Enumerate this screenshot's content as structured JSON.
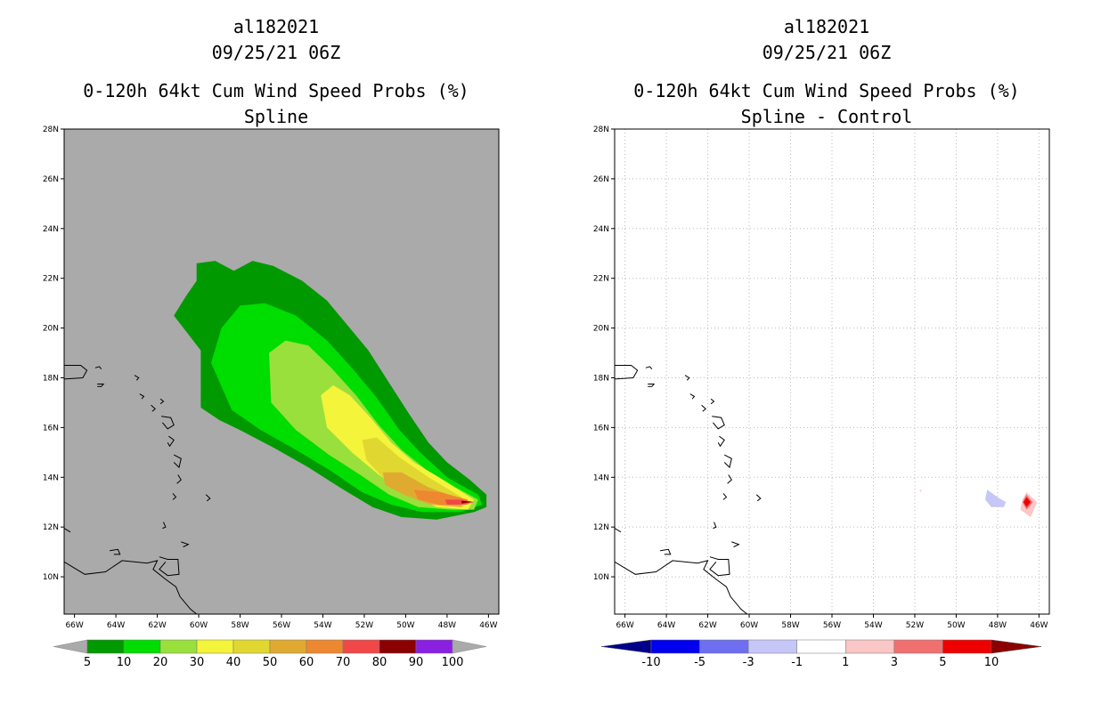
{
  "left_panel": {
    "storm_id": "al182021",
    "datetime": "09/25/21 06Z",
    "product": "0-120h 64kt Cum Wind Speed Probs (%)",
    "subtitle": "Spline"
  },
  "right_panel": {
    "storm_id": "al182021",
    "datetime": "09/25/21 06Z",
    "product": "0-120h 64kt Cum Wind Speed Probs (%)",
    "subtitle": "Spline - Control"
  },
  "chart_data": [
    {
      "type": "heatmap",
      "title": "0-120h 64kt Cum Wind Speed Probs (%) — Spline",
      "xlim": [
        -66.5,
        -45.5
      ],
      "ylim": [
        8.5,
        28
      ],
      "x_ticks": [
        "66W",
        "64W",
        "62W",
        "60W",
        "58W",
        "56W",
        "54W",
        "52W",
        "50W",
        "48W",
        "46W"
      ],
      "y_ticks": [
        "28N",
        "26N",
        "24N",
        "22N",
        "20N",
        "18N",
        "16N",
        "14N",
        "12N",
        "10N"
      ],
      "grid": false,
      "background": "#aaaaaa",
      "colorbar": {
        "levels": [
          "5",
          "10",
          "20",
          "30",
          "40",
          "50",
          "60",
          "70",
          "80",
          "90",
          "100"
        ],
        "colors": [
          "#009900",
          "#00dd00",
          "#99e03c",
          "#f4f43a",
          "#e0d830",
          "#e0aa30",
          "#ee8830",
          "#f04848",
          "#8b0000",
          "#8a20e0"
        ]
      },
      "contour_bands": [
        {
          "level": 5,
          "color": "#009900",
          "points": [
            [
              -61.2,
              20.5
            ],
            [
              -60.6,
              21.3
            ],
            [
              -60.1,
              21.9
            ],
            [
              -60.1,
              22.6
            ],
            [
              -59.2,
              22.7
            ],
            [
              -58.3,
              22.3
            ],
            [
              -57.4,
              22.7
            ],
            [
              -56.4,
              22.5
            ],
            [
              -55.0,
              21.9
            ],
            [
              -53.8,
              21.1
            ],
            [
              -52.8,
              20.1
            ],
            [
              -51.8,
              19.1
            ],
            [
              -50.8,
              17.8
            ],
            [
              -49.8,
              16.5
            ],
            [
              -48.9,
              15.4
            ],
            [
              -48.0,
              14.6
            ],
            [
              -46.9,
              13.9
            ],
            [
              -46.1,
              13.3
            ],
            [
              -46.1,
              12.8
            ],
            [
              -46.7,
              12.6
            ],
            [
              -48.5,
              12.3
            ],
            [
              -50.2,
              12.4
            ],
            [
              -51.6,
              12.8
            ],
            [
              -53.0,
              13.5
            ],
            [
              -54.7,
              14.4
            ],
            [
              -56.4,
              15.2
            ],
            [
              -58.0,
              15.9
            ],
            [
              -59.0,
              16.3
            ],
            [
              -59.9,
              16.8
            ],
            [
              -59.9,
              18.0
            ],
            [
              -59.9,
              19.1
            ]
          ]
        },
        {
          "level": 10,
          "color": "#00dd00",
          "points": [
            [
              -59.4,
              18.6
            ],
            [
              -58.9,
              20.0
            ],
            [
              -58.0,
              20.9
            ],
            [
              -56.8,
              21.0
            ],
            [
              -55.3,
              20.5
            ],
            [
              -53.8,
              19.5
            ],
            [
              -52.6,
              18.4
            ],
            [
              -51.4,
              17.2
            ],
            [
              -50.3,
              15.9
            ],
            [
              -49.3,
              15.0
            ],
            [
              -48.0,
              14.0
            ],
            [
              -46.5,
              13.3
            ],
            [
              -46.3,
              12.9
            ],
            [
              -47.4,
              12.6
            ],
            [
              -49.2,
              12.6
            ],
            [
              -50.7,
              12.9
            ],
            [
              -52.1,
              13.4
            ],
            [
              -53.7,
              14.3
            ],
            [
              -55.3,
              15.1
            ],
            [
              -57.0,
              15.9
            ],
            [
              -58.4,
              16.7
            ]
          ]
        },
        {
          "level": 20,
          "color": "#99e03c",
          "points": [
            [
              -56.6,
              19.0
            ],
            [
              -55.8,
              19.5
            ],
            [
              -54.7,
              19.3
            ],
            [
              -53.6,
              18.4
            ],
            [
              -52.4,
              17.3
            ],
            [
              -51.3,
              16.1
            ],
            [
              -50.2,
              15.1
            ],
            [
              -49.0,
              14.3
            ],
            [
              -47.6,
              13.6
            ],
            [
              -46.5,
              13.1
            ],
            [
              -46.7,
              12.7
            ],
            [
              -47.8,
              12.7
            ],
            [
              -49.4,
              12.8
            ],
            [
              -50.8,
              13.3
            ],
            [
              -52.2,
              14.1
            ],
            [
              -53.7,
              14.9
            ],
            [
              -55.3,
              15.9
            ],
            [
              -56.5,
              17.0
            ]
          ]
        },
        {
          "level": 30,
          "color": "#f4f43a",
          "points": [
            [
              -54.1,
              17.3
            ],
            [
              -53.5,
              17.7
            ],
            [
              -52.7,
              17.3
            ],
            [
              -51.7,
              16.4
            ],
            [
              -50.7,
              15.4
            ],
            [
              -49.6,
              14.6
            ],
            [
              -48.2,
              13.9
            ],
            [
              -46.7,
              13.1
            ],
            [
              -47.0,
              12.7
            ],
            [
              -48.5,
              12.8
            ],
            [
              -49.9,
              13.3
            ],
            [
              -51.3,
              14.1
            ],
            [
              -52.6,
              15.0
            ],
            [
              -53.8,
              16.0
            ]
          ]
        },
        {
          "level": 40,
          "color": "#e0d830",
          "points": [
            [
              -52.1,
              15.5
            ],
            [
              -51.4,
              15.6
            ],
            [
              -50.3,
              14.8
            ],
            [
              -48.9,
              14.0
            ],
            [
              -47.3,
              13.2
            ],
            [
              -47.2,
              12.8
            ],
            [
              -48.6,
              12.9
            ],
            [
              -49.9,
              13.3
            ],
            [
              -51.0,
              13.9
            ],
            [
              -51.9,
              14.7
            ]
          ]
        },
        {
          "level": 50,
          "color": "#e0aa30",
          "points": [
            [
              -51.1,
              14.2
            ],
            [
              -50.2,
              14.2
            ],
            [
              -48.9,
              13.6
            ],
            [
              -47.3,
              13.1
            ],
            [
              -47.3,
              12.8
            ],
            [
              -48.8,
              12.9
            ],
            [
              -50.1,
              13.3
            ],
            [
              -51.0,
              13.7
            ]
          ]
        },
        {
          "level": 60,
          "color": "#ee8830",
          "points": [
            [
              -49.6,
              13.5
            ],
            [
              -48.3,
              13.4
            ],
            [
              -47.0,
              13.1
            ],
            [
              -47.0,
              12.9
            ],
            [
              -48.4,
              12.9
            ],
            [
              -49.4,
              13.1
            ]
          ]
        },
        {
          "level": 70,
          "color": "#f04848",
          "points": [
            [
              -48.1,
              13.1
            ],
            [
              -47.3,
              13.1
            ],
            [
              -46.7,
              13.0
            ],
            [
              -47.2,
              12.9
            ],
            [
              -48.0,
              12.9
            ]
          ]
        },
        {
          "level": 80,
          "color": "#8b0000",
          "points": [
            [
              -47.3,
              13.05
            ],
            [
              -46.75,
              13.02
            ],
            [
              -47.3,
              12.95
            ]
          ]
        }
      ]
    },
    {
      "type": "heatmap",
      "title": "0-120h 64kt Cum Wind Speed Probs (%) — Spline - Control",
      "xlim": [
        -66.5,
        -45.5
      ],
      "ylim": [
        8.5,
        28
      ],
      "x_ticks": [
        "66W",
        "64W",
        "62W",
        "60W",
        "58W",
        "56W",
        "54W",
        "52W",
        "50W",
        "48W",
        "46W"
      ],
      "y_ticks": [
        "28N",
        "26N",
        "24N",
        "22N",
        "20N",
        "18N",
        "16N",
        "14N",
        "12N",
        "10N"
      ],
      "grid": true,
      "background": "#ffffff",
      "colorbar": {
        "levels": [
          "-10",
          "-5",
          "-3",
          "-1",
          "1",
          "3",
          "5",
          "10"
        ],
        "colors": [
          "#00008b",
          "#0000ee",
          "#6e6ef0",
          "#c6c6f8",
          "#ffffff",
          "#fac6c6",
          "#f07070",
          "#ee0000",
          "#8b0000"
        ]
      },
      "contour_bands": [
        {
          "level": -1,
          "color": "#c6c6f8",
          "points": [
            [
              -48.5,
              13.5
            ],
            [
              -48.0,
              13.2
            ],
            [
              -47.6,
              13.0
            ],
            [
              -47.7,
              12.8
            ],
            [
              -48.3,
              12.8
            ],
            [
              -48.6,
              13.1
            ]
          ]
        },
        {
          "level": 1,
          "color": "#fac6c6",
          "points": [
            [
              -46.6,
              13.4
            ],
            [
              -46.1,
              13.0
            ],
            [
              -46.4,
              12.4
            ],
            [
              -46.9,
              12.7
            ],
            [
              -46.8,
              13.1
            ]
          ]
        },
        {
          "level": 1,
          "color": "#fac6c6",
          "points": [
            [
              -51.72,
              13.5
            ],
            [
              -51.66,
              13.46
            ],
            [
              -51.72,
              13.42
            ],
            [
              -51.78,
              13.46
            ]
          ]
        },
        {
          "level": 3,
          "color": "#f07070",
          "points": [
            [
              -46.6,
              13.3
            ],
            [
              -46.3,
              13.0
            ],
            [
              -46.6,
              12.7
            ],
            [
              -46.8,
              13.0
            ]
          ]
        },
        {
          "level": 5,
          "color": "#ee0000",
          "points": [
            [
              -46.6,
              13.2
            ],
            [
              -46.4,
              13.0
            ],
            [
              -46.6,
              12.8
            ],
            [
              -46.75,
              13.0
            ]
          ]
        }
      ]
    }
  ]
}
